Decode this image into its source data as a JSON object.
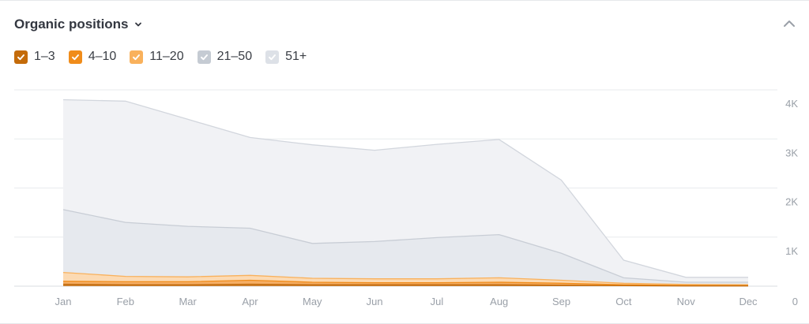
{
  "header": {
    "title": "Organic positions"
  },
  "legend": [
    {
      "label": "1–3",
      "color": "#c46b0a"
    },
    {
      "label": "4–10",
      "color": "#f08c1a"
    },
    {
      "label": "11–20",
      "color": "#f9b15c"
    },
    {
      "label": "21–50",
      "color": "#c5cbd3"
    },
    {
      "label": "51+",
      "color": "#dde1e7"
    }
  ],
  "chart_data": {
    "type": "area",
    "stacked": true,
    "categories": [
      "Jan",
      "Feb",
      "Mar",
      "Apr",
      "May",
      "Jun",
      "Jul",
      "Aug",
      "Sep",
      "Oct",
      "Nov",
      "Dec"
    ],
    "ylim": [
      0,
      4000
    ],
    "y_axis_position": "right",
    "y_ticks": [
      "0",
      "1K",
      "2K",
      "3K",
      "4K"
    ],
    "grid": true,
    "series": [
      {
        "name": "1–3",
        "values": [
          40,
          30,
          30,
          40,
          30,
          30,
          30,
          30,
          20,
          10,
          5,
          5
        ]
      },
      {
        "name": "4–10",
        "values": [
          60,
          60,
          60,
          80,
          50,
          40,
          40,
          50,
          40,
          20,
          10,
          10
        ]
      },
      {
        "name": "11–20",
        "values": [
          180,
          110,
          100,
          100,
          80,
          80,
          80,
          90,
          60,
          30,
          20,
          15
        ]
      },
      {
        "name": "21–50",
        "values": [
          1280,
          1100,
          1030,
          960,
          710,
          760,
          840,
          880,
          550,
          110,
          45,
          50
        ]
      },
      {
        "name": "51+",
        "values": [
          2240,
          2470,
          2180,
          1850,
          2010,
          1860,
          1900,
          1940,
          1490,
          360,
          100,
          100
        ]
      }
    ]
  }
}
